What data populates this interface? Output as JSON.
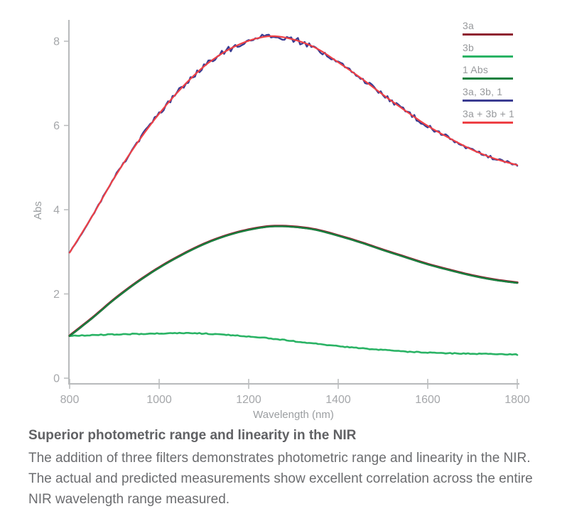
{
  "figure": {
    "caption_title": "Superior photometric range and linearity in the NIR",
    "caption_body": "The addition of three filters demonstrates photometric range and linearity in the NIR. The actual and predicted measurements show excellent correlation across the entire NIR wavelength range measured."
  },
  "ui_colors": {
    "axis_line": "#b8babc",
    "tick_label": "#a5a7aa",
    "axis_title": "#9b9ea1",
    "legend_text": "#97999c"
  },
  "chart_data": {
    "type": "line",
    "title": "",
    "xlabel": "Wavelength (nm)",
    "ylabel": "Abs",
    "xlim": [
      800,
      1800
    ],
    "ylim": [
      0,
      8
    ],
    "grid": false,
    "legend_position": "top-right",
    "x_ticks": [
      800,
      1000,
      1200,
      1400,
      1600,
      1800
    ],
    "y_ticks": [
      0,
      2,
      4,
      6,
      8
    ],
    "x": [
      800,
      850,
      900,
      950,
      1000,
      1050,
      1100,
      1150,
      1200,
      1250,
      1300,
      1350,
      1400,
      1450,
      1500,
      1550,
      1600,
      1650,
      1700,
      1750,
      1800
    ],
    "series": [
      {
        "name": "3a",
        "color": "#8e2130",
        "noise": "none",
        "values": [
          1.0,
          1.42,
          1.87,
          2.27,
          2.62,
          2.92,
          3.18,
          3.38,
          3.52,
          3.6,
          3.59,
          3.52,
          3.38,
          3.22,
          3.04,
          2.87,
          2.7,
          2.56,
          2.43,
          2.33,
          2.26
        ]
      },
      {
        "name": "3b",
        "color": "#2ab365",
        "noise": "slight",
        "values": [
          1.0,
          1.02,
          1.04,
          1.05,
          1.06,
          1.07,
          1.06,
          1.03,
          0.99,
          0.94,
          0.88,
          0.82,
          0.76,
          0.71,
          0.67,
          0.63,
          0.61,
          0.59,
          0.58,
          0.57,
          0.56
        ]
      },
      {
        "name": "1 Abs",
        "color": "#15813f",
        "noise": "none",
        "values": [
          1.0,
          1.42,
          1.87,
          2.27,
          2.62,
          2.92,
          3.18,
          3.38,
          3.52,
          3.6,
          3.59,
          3.52,
          3.38,
          3.22,
          3.04,
          2.87,
          2.7,
          2.56,
          2.43,
          2.33,
          2.26
        ]
      },
      {
        "name": "3a, 3b, 1",
        "color": "#3b3d92",
        "noise": "high",
        "values": [
          2.98,
          3.84,
          4.76,
          5.57,
          6.28,
          6.89,
          7.4,
          7.77,
          8.01,
          8.12,
          8.04,
          7.84,
          7.5,
          7.13,
          6.73,
          6.35,
          5.99,
          5.69,
          5.42,
          5.21,
          5.06
        ]
      },
      {
        "name": "3a + 3b + 1",
        "color": "#ee4045",
        "noise": "none",
        "values": [
          2.98,
          3.84,
          4.76,
          5.57,
          6.28,
          6.89,
          7.4,
          7.77,
          8.01,
          8.12,
          8.04,
          7.84,
          7.5,
          7.13,
          6.73,
          6.35,
          5.99,
          5.69,
          5.42,
          5.21,
          5.06
        ]
      }
    ]
  }
}
